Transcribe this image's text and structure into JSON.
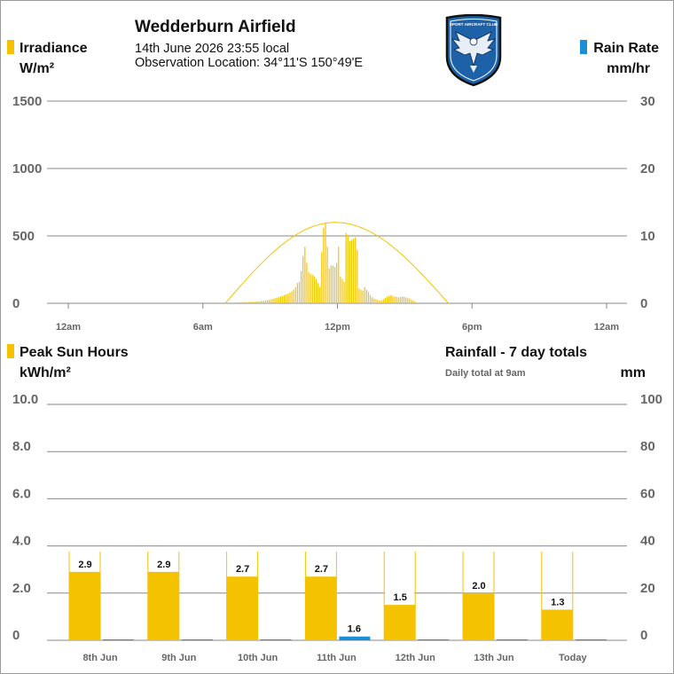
{
  "header": {
    "station": "Wedderburn Airfield",
    "date_line": "14th June 2026  23:55 local",
    "location_line": "Observation Location: 34°11'S 150°49'E"
  },
  "logo": {
    "text_top": "SPORT AIRCRAFT CLUB",
    "icon": "eagle-emblem"
  },
  "colors": {
    "sun": "#f5c200",
    "rain": "#1a8fd6",
    "curve": "#f5c200",
    "grid": "#888888",
    "axis_text": "#666666"
  },
  "chart_data": [
    {
      "type": "bar",
      "id": "irradiance",
      "left_label": "Irradiance",
      "left_unit": "W/m²",
      "right_label": "Rain Rate",
      "right_unit": "mm/hr",
      "y_left_ticks": [
        "1500",
        "1000",
        "500",
        "0"
      ],
      "y_right_ticks": [
        "30",
        "20",
        "10",
        "0"
      ],
      "ylim_left": [
        0,
        1500
      ],
      "ylim_right": [
        0,
        30
      ],
      "x_ticks": [
        {
          "hour": 0,
          "label": "12am"
        },
        {
          "hour": 6,
          "label": "6am"
        },
        {
          "hour": 12,
          "label": "12pm"
        },
        {
          "hour": 18,
          "label": "6pm"
        },
        {
          "hour": 24,
          "label": "12am"
        }
      ],
      "xlim_hours": [
        0,
        24
      ],
      "clear_sky_curve": {
        "start_hour": 7.0,
        "end_hour": 16.95,
        "peak_hour": 11.9,
        "peak_value": 600
      },
      "irradiance_start_hour": 7.3,
      "irradiance_step_minutes": 5,
      "irradiance_values": [
        5,
        6,
        6,
        7,
        7,
        8,
        8,
        9,
        9,
        10,
        10,
        11,
        12,
        13,
        14,
        15,
        17,
        19,
        21,
        24,
        27,
        30,
        34,
        38,
        42,
        46,
        50,
        55,
        60,
        66,
        72,
        80,
        88,
        100,
        120,
        150,
        160,
        240,
        350,
        420,
        300,
        230,
        220,
        210,
        200,
        180,
        150,
        120,
        380,
        560,
        600,
        420,
        260,
        280,
        280,
        270,
        300,
        420,
        200,
        180,
        160,
        520,
        500,
        460,
        470,
        480,
        490,
        400,
        110,
        100,
        95,
        120,
        100,
        85,
        60,
        45,
        35,
        30,
        25,
        20,
        22,
        30,
        40,
        50,
        55,
        60,
        55,
        50,
        48,
        45,
        47,
        50,
        48,
        45,
        40,
        35,
        28,
        20,
        12,
        6
      ],
      "rain_values": []
    },
    {
      "type": "bar",
      "id": "daily",
      "left_label": "Peak Sun Hours",
      "left_unit": "kWh/m²",
      "right_label": "Rainfall - 7 day totals",
      "right_note": "Daily total at 9am",
      "right_unit": "mm",
      "y_left_ticks": [
        "10.0",
        "8.0",
        "6.0",
        "4.0",
        "2.0",
        "0"
      ],
      "y_right_ticks": [
        "100",
        "80",
        "60",
        "40",
        "20",
        "0"
      ],
      "ylim_left": [
        0,
        10
      ],
      "ylim_right": [
        0,
        100
      ],
      "categories": [
        "8th Jun",
        "9th Jun",
        "10th Jun",
        "11th Jun",
        "12th Jun",
        "13th Jun",
        "Today"
      ],
      "series": [
        {
          "name": "Peak Sun Hours",
          "axis": "left",
          "values": [
            2.9,
            2.9,
            2.7,
            2.7,
            1.5,
            2.0,
            1.3
          ]
        },
        {
          "name": "Rainfall",
          "axis": "right",
          "values": [
            0,
            0,
            0,
            1.6,
            0,
            0,
            0
          ]
        }
      ],
      "sun_value_labels": [
        "2.9",
        "2.9",
        "2.7",
        "2.7",
        "1.5",
        "2.0",
        "1.3"
      ],
      "rain_value_labels": [
        "",
        "",
        "",
        "1.6",
        "",
        "",
        ""
      ],
      "daylight_markers": true
    }
  ]
}
